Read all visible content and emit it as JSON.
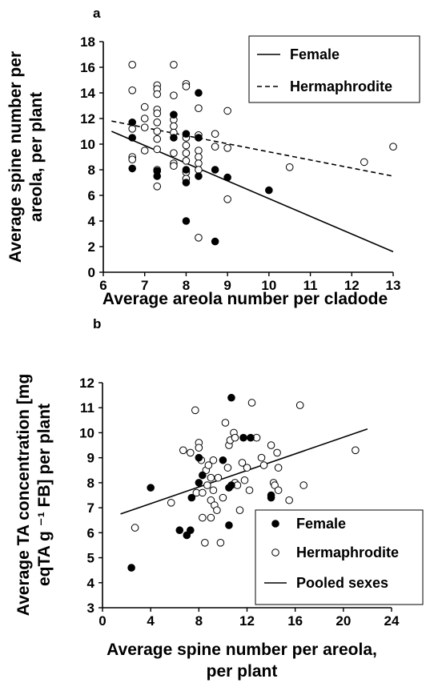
{
  "chart_data": [
    {
      "panel": "a",
      "type": "scatter",
      "xlabel": "Average areola number per cladode",
      "ylabel_lines": [
        "Average spine number per",
        "areola, per plant"
      ],
      "xlim": [
        6,
        13
      ],
      "ylim": [
        0,
        18
      ],
      "xticks": [
        6,
        7,
        8,
        9,
        10,
        11,
        12,
        13
      ],
      "yticks": [
        0,
        2,
        4,
        6,
        8,
        10,
        12,
        14,
        16,
        18
      ],
      "legend": {
        "position": "top-right",
        "entries": [
          "Female",
          "Hermaphrodite"
        ]
      },
      "series": [
        {
          "name": "Female",
          "marker": "filled",
          "points": [
            [
              6.7,
              11.7
            ],
            [
              6.7,
              10.5
            ],
            [
              6.7,
              8.1
            ],
            [
              7.3,
              7.5
            ],
            [
              7.3,
              7.9
            ],
            [
              7.7,
              12.3
            ],
            [
              7.7,
              10.5
            ],
            [
              8.0,
              10.8
            ],
            [
              8.0,
              8.0
            ],
            [
              8.0,
              7.0
            ],
            [
              8.0,
              4.0
            ],
            [
              8.3,
              14.0
            ],
            [
              8.3,
              10.5
            ],
            [
              8.3,
              7.5
            ],
            [
              8.7,
              8.0
            ],
            [
              8.7,
              2.4
            ],
            [
              9.0,
              7.4
            ],
            [
              10.0,
              6.4
            ]
          ],
          "fit": {
            "style": "solid",
            "x": [
              6.2,
              13.0
            ],
            "y": [
              11.0,
              1.6
            ]
          }
        },
        {
          "name": "Hermaphrodite",
          "marker": "open",
          "points": [
            [
              6.7,
              16.2
            ],
            [
              6.7,
              14.2
            ],
            [
              6.7,
              11.2
            ],
            [
              6.7,
              9.0
            ],
            [
              6.7,
              8.8
            ],
            [
              7.0,
              12.9
            ],
            [
              7.0,
              12.0
            ],
            [
              7.0,
              11.3
            ],
            [
              7.0,
              9.5
            ],
            [
              7.3,
              14.6
            ],
            [
              7.3,
              14.3
            ],
            [
              7.3,
              13.9
            ],
            [
              7.3,
              12.7
            ],
            [
              7.3,
              12.4
            ],
            [
              7.3,
              11.7
            ],
            [
              7.3,
              11.0
            ],
            [
              7.3,
              10.4
            ],
            [
              7.3,
              9.6
            ],
            [
              7.3,
              8.0
            ],
            [
              7.3,
              6.7
            ],
            [
              7.7,
              16.2
            ],
            [
              7.7,
              13.8
            ],
            [
              7.7,
              11.9
            ],
            [
              7.7,
              11.4
            ],
            [
              7.7,
              10.9
            ],
            [
              7.7,
              9.3
            ],
            [
              7.7,
              8.5
            ],
            [
              7.7,
              8.3
            ],
            [
              8.0,
              14.7
            ],
            [
              8.0,
              14.5
            ],
            [
              8.0,
              10.5
            ],
            [
              8.0,
              9.9
            ],
            [
              8.0,
              9.3
            ],
            [
              8.0,
              8.7
            ],
            [
              8.0,
              7.8
            ],
            [
              8.0,
              7.3
            ],
            [
              8.3,
              12.8
            ],
            [
              8.3,
              10.7
            ],
            [
              8.3,
              9.5
            ],
            [
              8.3,
              9.0
            ],
            [
              8.3,
              8.5
            ],
            [
              8.3,
              8.0
            ],
            [
              8.3,
              2.7
            ],
            [
              8.7,
              10.8
            ],
            [
              8.7,
              9.8
            ],
            [
              9.0,
              12.6
            ],
            [
              9.0,
              9.7
            ],
            [
              9.0,
              5.7
            ],
            [
              10.5,
              8.2
            ],
            [
              12.3,
              8.6
            ],
            [
              13.0,
              9.8
            ]
          ],
          "fit": {
            "style": "dashed",
            "x": [
              6.2,
              13.0
            ],
            "y": [
              11.8,
              7.5
            ]
          }
        }
      ]
    },
    {
      "panel": "b",
      "type": "scatter",
      "xlabel_lines": [
        "Average spine number per areola,",
        "per plant"
      ],
      "ylabel_lines": [
        "Average TA concentration [mg",
        "eqTA g ⁻¹ FB] per plant"
      ],
      "xlim": [
        0,
        24
      ],
      "ylim": [
        3,
        12
      ],
      "xticks": [
        0,
        4,
        8,
        12,
        16,
        20,
        24
      ],
      "yticks": [
        3,
        4,
        5,
        6,
        7,
        8,
        9,
        10,
        11,
        12
      ],
      "legend": {
        "position": "bottom-right",
        "entries": [
          "Female",
          "Hermaphrodite",
          "Pooled sexes"
        ]
      },
      "series": [
        {
          "name": "Female",
          "marker": "filled",
          "points": [
            [
              2.4,
              4.6
            ],
            [
              4.0,
              7.8
            ],
            [
              6.4,
              6.1
            ],
            [
              7.0,
              5.9
            ],
            [
              7.3,
              6.1
            ],
            [
              7.4,
              7.4
            ],
            [
              8.0,
              9.0
            ],
            [
              8.0,
              8.0
            ],
            [
              8.3,
              8.3
            ],
            [
              10.0,
              8.9
            ],
            [
              10.5,
              6.3
            ],
            [
              10.5,
              7.8
            ],
            [
              10.7,
              7.9
            ],
            [
              10.7,
              11.4
            ],
            [
              11.7,
              9.8
            ],
            [
              12.3,
              9.8
            ],
            [
              14.0,
              7.5
            ],
            [
              14.0,
              7.4
            ]
          ]
        },
        {
          "name": "Hermaphrodite",
          "marker": "open",
          "points": [
            [
              2.7,
              6.2
            ],
            [
              5.7,
              7.2
            ],
            [
              6.7,
              9.3
            ],
            [
              7.3,
              9.2
            ],
            [
              7.7,
              10.9
            ],
            [
              7.8,
              7.6
            ],
            [
              8.0,
              9.6
            ],
            [
              8.0,
              9.4
            ],
            [
              8.2,
              8.9
            ],
            [
              8.3,
              7.6
            ],
            [
              8.3,
              6.6
            ],
            [
              8.5,
              5.6
            ],
            [
              8.6,
              8.5
            ],
            [
              8.7,
              7.9
            ],
            [
              8.8,
              8.7
            ],
            [
              9.0,
              8.2
            ],
            [
              9.0,
              7.3
            ],
            [
              9.0,
              6.6
            ],
            [
              9.2,
              8.9
            ],
            [
              9.2,
              7.7
            ],
            [
              9.3,
              7.1
            ],
            [
              9.5,
              6.9
            ],
            [
              9.6,
              8.2
            ],
            [
              9.8,
              5.6
            ],
            [
              10.0,
              7.4
            ],
            [
              10.2,
              10.4
            ],
            [
              10.4,
              8.6
            ],
            [
              10.5,
              9.5
            ],
            [
              10.6,
              9.7
            ],
            [
              10.9,
              10.0
            ],
            [
              11.0,
              9.8
            ],
            [
              11.0,
              8.0
            ],
            [
              11.2,
              7.9
            ],
            [
              11.4,
              6.9
            ],
            [
              11.6,
              8.8
            ],
            [
              11.8,
              8.1
            ],
            [
              12.0,
              8.6
            ],
            [
              12.2,
              7.7
            ],
            [
              12.4,
              11.2
            ],
            [
              12.8,
              9.8
            ],
            [
              13.2,
              9.0
            ],
            [
              13.4,
              8.7
            ],
            [
              14.0,
              9.5
            ],
            [
              14.2,
              8.0
            ],
            [
              14.3,
              7.9
            ],
            [
              14.5,
              9.2
            ],
            [
              14.6,
              8.6
            ],
            [
              14.6,
              7.7
            ],
            [
              15.5,
              7.3
            ],
            [
              16.4,
              11.1
            ],
            [
              16.7,
              7.9
            ],
            [
              21.0,
              9.3
            ]
          ]
        },
        {
          "name": "Pooled sexes",
          "type": "line",
          "style": "solid",
          "x": [
            1.5,
            22.0
          ],
          "y": [
            6.75,
            10.15
          ]
        }
      ]
    }
  ]
}
